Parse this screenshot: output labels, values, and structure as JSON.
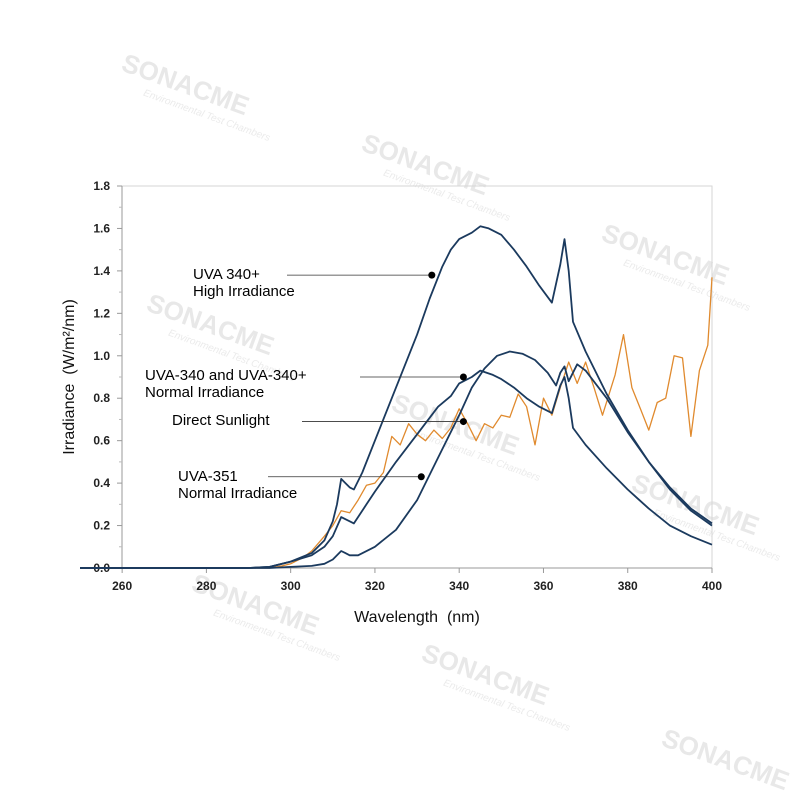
{
  "watermark": {
    "brand": "SONACME",
    "tagline": "Environmental Test Chambers"
  },
  "chart_data": {
    "type": "line",
    "title": "",
    "xlabel": "Wavelength  (nm)",
    "ylabel": "Irradiance  (W/m²/nm)",
    "xlim": [
      250,
      400
    ],
    "ylim": [
      0,
      1.8
    ],
    "xticks": [
      "260",
      "280",
      "300",
      "320",
      "340",
      "360",
      "380",
      "400"
    ],
    "yticks": [
      "0.0",
      "0.2",
      "0.4",
      "0.6",
      "0.8",
      "1.0",
      "1.2",
      "1.4",
      "1.6",
      "1.8"
    ],
    "grid": false,
    "colors": {
      "uva": "#1b3a5e",
      "sunlight": "#e08a2e",
      "axis": "#999999"
    },
    "series": [
      {
        "name": "UVA 340+ High Irradiance",
        "color": "#1b3a5e",
        "points": [
          [
            250,
            0
          ],
          [
            290,
            0
          ],
          [
            295,
            0.005
          ],
          [
            300,
            0.03
          ],
          [
            305,
            0.07
          ],
          [
            308,
            0.13
          ],
          [
            310,
            0.22
          ],
          [
            311,
            0.3
          ],
          [
            312,
            0.42
          ],
          [
            313,
            0.4
          ],
          [
            314,
            0.38
          ],
          [
            315,
            0.37
          ],
          [
            317,
            0.45
          ],
          [
            320,
            0.6
          ],
          [
            325,
            0.85
          ],
          [
            330,
            1.1
          ],
          [
            333,
            1.27
          ],
          [
            336,
            1.42
          ],
          [
            338,
            1.5
          ],
          [
            340,
            1.55
          ],
          [
            343,
            1.58
          ],
          [
            345,
            1.61
          ],
          [
            347,
            1.6
          ],
          [
            350,
            1.57
          ],
          [
            353,
            1.5
          ],
          [
            356,
            1.42
          ],
          [
            359,
            1.33
          ],
          [
            362,
            1.25
          ],
          [
            364,
            1.43
          ],
          [
            365,
            1.55
          ],
          [
            366,
            1.4
          ],
          [
            367,
            1.16
          ],
          [
            370,
            1.02
          ],
          [
            375,
            0.82
          ],
          [
            380,
            0.65
          ],
          [
            385,
            0.5
          ],
          [
            390,
            0.37
          ],
          [
            395,
            0.27
          ],
          [
            400,
            0.2
          ]
        ]
      },
      {
        "name": "UVA-340 and UVA-340+ Normal Irradiance",
        "color": "#1b3a5e",
        "points": [
          [
            250,
            0
          ],
          [
            290,
            0
          ],
          [
            295,
            0.005
          ],
          [
            300,
            0.03
          ],
          [
            305,
            0.06
          ],
          [
            308,
            0.1
          ],
          [
            310,
            0.15
          ],
          [
            312,
            0.24
          ],
          [
            313,
            0.23
          ],
          [
            314,
            0.22
          ],
          [
            315,
            0.21
          ],
          [
            318,
            0.3
          ],
          [
            320,
            0.36
          ],
          [
            325,
            0.5
          ],
          [
            330,
            0.63
          ],
          [
            335,
            0.76
          ],
          [
            338,
            0.81
          ],
          [
            340,
            0.87
          ],
          [
            343,
            0.9
          ],
          [
            345,
            0.93
          ],
          [
            348,
            0.91
          ],
          [
            350,
            0.89
          ],
          [
            353,
            0.85
          ],
          [
            356,
            0.8
          ],
          [
            359,
            0.76
          ],
          [
            362,
            0.73
          ],
          [
            364,
            0.86
          ],
          [
            365,
            0.9
          ],
          [
            366,
            0.8
          ],
          [
            367,
            0.66
          ],
          [
            370,
            0.58
          ],
          [
            375,
            0.47
          ],
          [
            380,
            0.37
          ],
          [
            385,
            0.28
          ],
          [
            390,
            0.2
          ],
          [
            395,
            0.15
          ],
          [
            400,
            0.11
          ]
        ]
      },
      {
        "name": "UVA-351 Normal Irradiance",
        "color": "#1b3a5e",
        "points": [
          [
            250,
            0
          ],
          [
            295,
            0
          ],
          [
            300,
            0.005
          ],
          [
            305,
            0.01
          ],
          [
            308,
            0.02
          ],
          [
            310,
            0.04
          ],
          [
            311,
            0.06
          ],
          [
            312,
            0.08
          ],
          [
            313,
            0.07
          ],
          [
            314,
            0.06
          ],
          [
            316,
            0.06
          ],
          [
            320,
            0.1
          ],
          [
            325,
            0.18
          ],
          [
            330,
            0.32
          ],
          [
            335,
            0.52
          ],
          [
            340,
            0.72
          ],
          [
            343,
            0.85
          ],
          [
            346,
            0.94
          ],
          [
            349,
            1.0
          ],
          [
            352,
            1.02
          ],
          [
            355,
            1.01
          ],
          [
            358,
            0.98
          ],
          [
            361,
            0.92
          ],
          [
            363,
            0.86
          ],
          [
            364,
            0.92
          ],
          [
            365,
            0.95
          ],
          [
            366,
            0.88
          ],
          [
            368,
            0.96
          ],
          [
            370,
            0.93
          ],
          [
            375,
            0.8
          ],
          [
            380,
            0.64
          ],
          [
            385,
            0.5
          ],
          [
            390,
            0.38
          ],
          [
            395,
            0.28
          ],
          [
            400,
            0.21
          ]
        ]
      },
      {
        "name": "Direct Sunlight",
        "color": "#e08a2e",
        "points": [
          [
            250,
            0
          ],
          [
            295,
            0
          ],
          [
            298,
            0.01
          ],
          [
            300,
            0.02
          ],
          [
            303,
            0.05
          ],
          [
            305,
            0.08
          ],
          [
            308,
            0.15
          ],
          [
            310,
            0.2
          ],
          [
            312,
            0.27
          ],
          [
            314,
            0.26
          ],
          [
            316,
            0.32
          ],
          [
            318,
            0.39
          ],
          [
            320,
            0.4
          ],
          [
            322,
            0.45
          ],
          [
            324,
            0.62
          ],
          [
            326,
            0.58
          ],
          [
            328,
            0.68
          ],
          [
            330,
            0.63
          ],
          [
            332,
            0.6
          ],
          [
            334,
            0.65
          ],
          [
            336,
            0.61
          ],
          [
            338,
            0.66
          ],
          [
            340,
            0.75
          ],
          [
            342,
            0.68
          ],
          [
            344,
            0.6
          ],
          [
            346,
            0.68
          ],
          [
            348,
            0.66
          ],
          [
            350,
            0.72
          ],
          [
            352,
            0.71
          ],
          [
            354,
            0.82
          ],
          [
            356,
            0.76
          ],
          [
            358,
            0.58
          ],
          [
            360,
            0.8
          ],
          [
            362,
            0.72
          ],
          [
            364,
            0.85
          ],
          [
            366,
            0.97
          ],
          [
            368,
            0.87
          ],
          [
            370,
            0.97
          ],
          [
            372,
            0.85
          ],
          [
            374,
            0.72
          ],
          [
            377,
            0.91
          ],
          [
            379,
            1.1
          ],
          [
            381,
            0.85
          ],
          [
            383,
            0.75
          ],
          [
            385,
            0.65
          ],
          [
            387,
            0.78
          ],
          [
            389,
            0.8
          ],
          [
            391,
            1.0
          ],
          [
            393,
            0.99
          ],
          [
            395,
            0.62
          ],
          [
            397,
            0.93
          ],
          [
            399,
            1.05
          ],
          [
            400,
            1.37
          ]
        ]
      }
    ],
    "annotations": [
      {
        "lines": [
          "UVA 340+",
          "High Irradiance"
        ],
        "x": 333.5,
        "y": 1.38
      },
      {
        "lines": [
          "UVA-340 and UVA-340+",
          "Normal Irradiance"
        ],
        "x": 341,
        "y": 0.9
      },
      {
        "lines": [
          "Direct Sunlight"
        ],
        "x": 341,
        "y": 0.69
      },
      {
        "lines": [
          "UVA-351",
          "Normal Irradiance"
        ],
        "x": 331,
        "y": 0.43
      }
    ]
  }
}
